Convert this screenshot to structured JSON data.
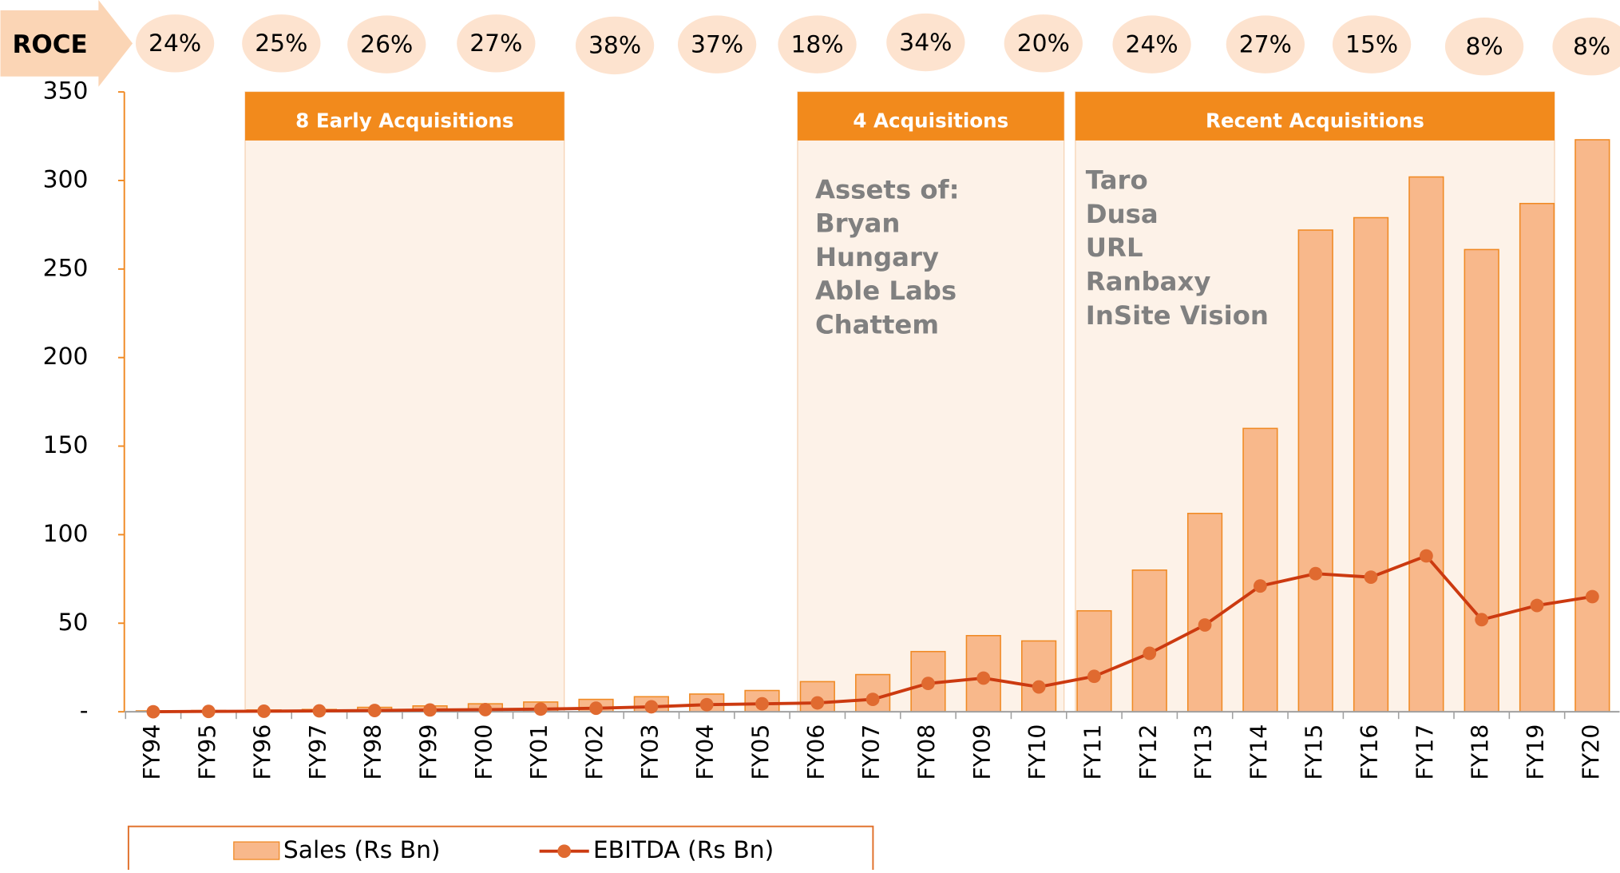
{
  "chart_data": {
    "type": "bar_line",
    "categories": [
      "FY94",
      "FY95",
      "FY96",
      "FY97",
      "FY98",
      "FY99",
      "FY00",
      "FY01",
      "FY02",
      "FY03",
      "FY04",
      "FY05",
      "FY06",
      "FY07",
      "FY08",
      "FY09",
      "FY10",
      "FY11",
      "FY12",
      "FY13",
      "FY14",
      "FY15",
      "FY16",
      "FY17",
      "FY18",
      "FY19",
      "FY20"
    ],
    "series": [
      {
        "name": "Sales (Rs Bn)",
        "type": "bar",
        "color": "#f8b88b",
        "values": [
          0.5,
          0.7,
          1,
          1.3,
          2.5,
          3.3,
          4.5,
          5.5,
          7,
          8.5,
          10,
          12,
          17,
          21,
          34,
          43,
          40,
          57,
          80,
          112,
          160,
          272,
          279,
          302,
          261,
          287,
          323
        ]
      },
      {
        "name": "EBITDA (Rs Bn)",
        "type": "line",
        "color": "#cc3a10",
        "values": [
          0,
          0.2,
          0.3,
          0.5,
          0.7,
          1,
          1.2,
          1.5,
          2,
          2.8,
          4,
          4.5,
          5,
          7,
          16,
          19,
          14,
          20,
          33,
          49,
          71,
          78,
          76,
          88,
          52,
          60,
          65
        ]
      }
    ],
    "ylim": [
      0,
      350
    ],
    "yticks": [
      {
        "value": 0,
        "label": "-"
      },
      50,
      100,
      150,
      200,
      250,
      300,
      350
    ],
    "roce": {
      "label": "ROCE",
      "values": [
        24,
        25,
        26,
        27,
        38,
        37,
        18,
        34,
        20,
        24,
        27,
        15,
        8,
        8
      ],
      "value_labels": [
        "24%",
        "25%",
        "26%",
        "27%",
        "38%",
        "37%",
        "18%",
        "34%",
        "20%",
        "24%",
        "27%",
        "15%",
        "8%",
        "8%"
      ]
    },
    "annotations": [
      {
        "title": "8 Early Acquisitions",
        "items": []
      },
      {
        "title": "4 Acquisitions",
        "items": [
          "Assets of:",
          "Bryan",
          "Hungary",
          "Able Labs",
          "Chattem"
        ]
      },
      {
        "title": "Recent Acquisitions",
        "items": [
          "Taro",
          "Dusa",
          "URL",
          "Ranbaxy",
          "InSite Vision"
        ]
      }
    ]
  }
}
